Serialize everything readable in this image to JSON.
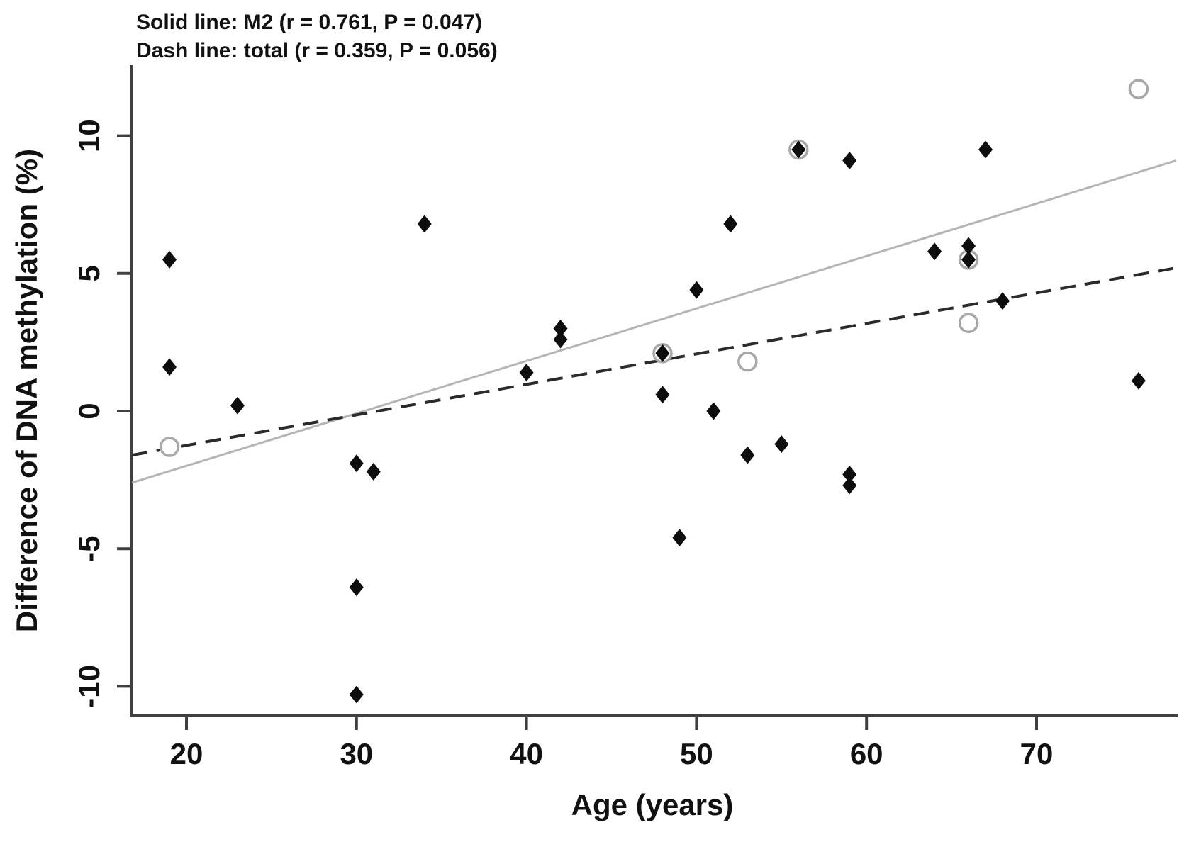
{
  "figure": {
    "annotation": {
      "line1": "Solid line: M2 (r = 0.761, P = 0.047)",
      "line2": "Dash line: total (r = 0.359, P = 0.056)"
    },
    "colors": {
      "diamond_fill": "#0d0d0d",
      "circle_stroke": "#a8a8a8",
      "solid_line": "#b5b5b5",
      "dashed_line": "#2b2b2b",
      "axis": "#3f3f3f",
      "text": "#111111"
    }
  },
  "chart_data": {
    "type": "scatter",
    "title": "",
    "xlabel": "Age (years)",
    "ylabel": "Difference of DNA methylation (%)",
    "xlim": [
      16.7,
      78.3
    ],
    "ylim": [
      -11.5,
      12.5
    ],
    "x_ticks": [
      20,
      30,
      40,
      50,
      60,
      70
    ],
    "y_ticks": [
      -10,
      -5,
      0,
      5,
      10
    ],
    "grid": false,
    "legend_position": "top-left-annotation",
    "series": [
      {
        "name": "filled-diamond points",
        "marker": "diamond",
        "points": [
          [
            19,
            5.5
          ],
          [
            19,
            1.6
          ],
          [
            23,
            0.2
          ],
          [
            30,
            -1.9
          ],
          [
            31,
            -2.2
          ],
          [
            30,
            -6.4
          ],
          [
            30,
            -10.3
          ],
          [
            34,
            6.8
          ],
          [
            40,
            1.4
          ],
          [
            42,
            3.0
          ],
          [
            42,
            2.6
          ],
          [
            48,
            2.1
          ],
          [
            48,
            0.6
          ],
          [
            49,
            -4.6
          ],
          [
            50,
            4.4
          ],
          [
            51,
            0.0
          ],
          [
            52,
            6.8
          ],
          [
            53,
            -1.6
          ],
          [
            55,
            -1.2
          ],
          [
            56,
            9.5
          ],
          [
            59,
            9.1
          ],
          [
            59,
            -2.3
          ],
          [
            59,
            -2.7
          ],
          [
            64,
            5.8
          ],
          [
            66,
            6.0
          ],
          [
            66,
            5.5
          ],
          [
            67,
            9.5
          ],
          [
            68,
            4.0
          ],
          [
            76,
            1.1
          ]
        ]
      },
      {
        "name": "open-circle points",
        "marker": "circle",
        "points": [
          [
            19,
            -1.3
          ],
          [
            48,
            2.1
          ],
          [
            53,
            1.8
          ],
          [
            56,
            9.5
          ],
          [
            66,
            5.5
          ],
          [
            66,
            3.2
          ],
          [
            76,
            11.7
          ]
        ]
      }
    ],
    "fit_lines": [
      {
        "name": "M2",
        "style": "solid",
        "r": 0.761,
        "P": 0.047,
        "x1": 16.8,
        "y1": -2.6,
        "x2": 78.2,
        "y2": 9.1
      },
      {
        "name": "total",
        "style": "dashed",
        "r": 0.359,
        "P": 0.056,
        "x1": 16.8,
        "y1": -1.6,
        "x2": 78.2,
        "y2": 5.2
      }
    ]
  }
}
